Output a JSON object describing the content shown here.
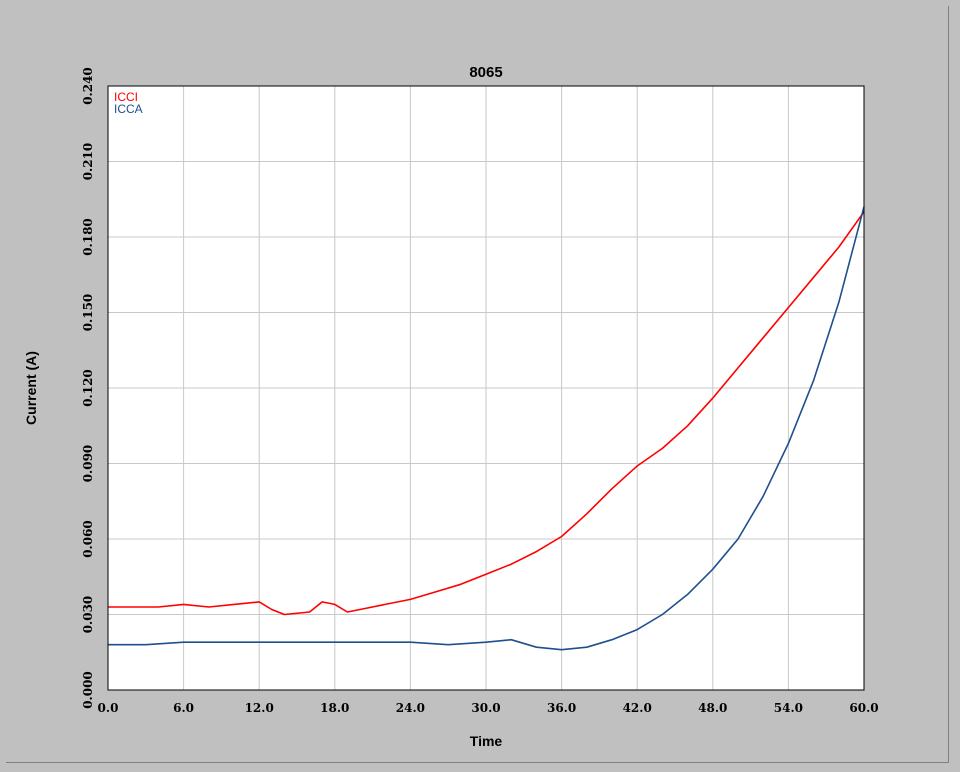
{
  "chart_data": {
    "type": "line",
    "title": "8065",
    "xlabel": "Time",
    "ylabel": "Current (A)",
    "xlim": [
      0,
      60
    ],
    "ylim": [
      0,
      0.24
    ],
    "x_ticks": [
      "0.0",
      "6.0",
      "12.0",
      "18.0",
      "24.0",
      "30.0",
      "36.0",
      "42.0",
      "48.0",
      "54.0",
      "60.0"
    ],
    "y_ticks": [
      "0.000",
      "0.030",
      "0.060",
      "0.090",
      "0.120",
      "0.150",
      "0.180",
      "0.210",
      "0.240"
    ],
    "grid": true,
    "legend_position": "top-left",
    "series": [
      {
        "name": "ICCI",
        "color": "#ff0000",
        "x": [
          0,
          2,
          4,
          6,
          8,
          10,
          12,
          13,
          14,
          16,
          17,
          18,
          19,
          20,
          22,
          24,
          26,
          28,
          30,
          32,
          34,
          36,
          38,
          40,
          42,
          44,
          46,
          48,
          50,
          52,
          54,
          56,
          58,
          60
        ],
        "y": [
          0.033,
          0.033,
          0.033,
          0.034,
          0.033,
          0.034,
          0.035,
          0.032,
          0.03,
          0.031,
          0.035,
          0.034,
          0.031,
          0.032,
          0.034,
          0.036,
          0.039,
          0.042,
          0.046,
          0.05,
          0.055,
          0.061,
          0.07,
          0.08,
          0.089,
          0.096,
          0.105,
          0.116,
          0.128,
          0.14,
          0.152,
          0.164,
          0.176,
          0.19
        ]
      },
      {
        "name": "ICCA",
        "color": "#1f4f8f",
        "x": [
          0,
          3,
          6,
          9,
          12,
          15,
          18,
          21,
          24,
          27,
          30,
          32,
          34,
          36,
          38,
          40,
          42,
          44,
          46,
          48,
          50,
          52,
          54,
          56,
          58,
          60
        ],
        "y": [
          0.018,
          0.018,
          0.019,
          0.019,
          0.019,
          0.019,
          0.019,
          0.019,
          0.019,
          0.018,
          0.019,
          0.02,
          0.017,
          0.016,
          0.017,
          0.02,
          0.024,
          0.03,
          0.038,
          0.048,
          0.06,
          0.077,
          0.098,
          0.123,
          0.154,
          0.192
        ]
      }
    ]
  }
}
